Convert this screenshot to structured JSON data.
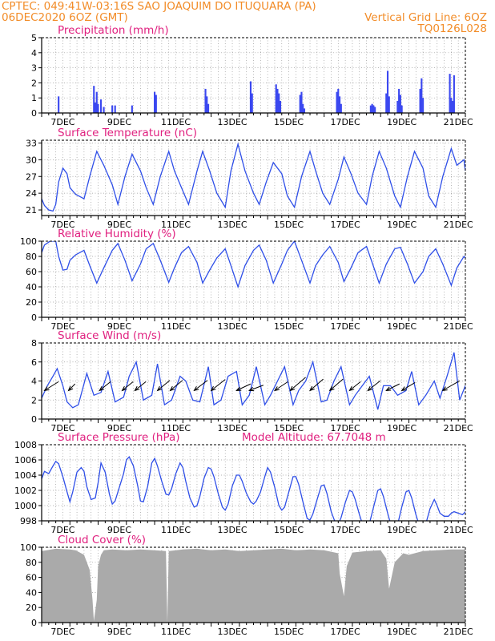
{
  "header": {
    "line1_left": "CPTEC:   049:41W-03:16S   SAO JOAQUIM DO ITUQUARA (PA)",
    "line2_left": "06DEC2020 6OZ (GMT)",
    "line2_right": "Vertical Grid Line: 6OZ",
    "line3_right": "TQ0126L028"
  },
  "x_tick_labels": [
    "7DEC",
    "9DEC",
    "11DEC",
    "13DEC",
    "15DEC",
    "17DEC",
    "19DEC",
    "21DEC"
  ],
  "colors": {
    "header": "#f28c28",
    "panel_title": "#e0207f",
    "line": "#2f4fe8",
    "bar": "#3b48f0",
    "cloud": "#aaaaaa",
    "grid": "#9a9a9a"
  },
  "chart_data": [
    {
      "type": "bar",
      "title": "Precipitation (mm/h)",
      "x_unit": "days since 06DEC2020 06Z",
      "xlim": [
        0,
        15
      ],
      "ylim": [
        0,
        5
      ],
      "yticks": [
        0,
        1,
        2,
        3,
        4,
        5
      ],
      "x": [
        0.6,
        1.85,
        1.9,
        1.95,
        2.0,
        2.1,
        2.2,
        2.5,
        2.6,
        3.2,
        4.0,
        4.05,
        5.8,
        5.85,
        5.9,
        7.4,
        7.45,
        8.3,
        8.35,
        8.4,
        8.45,
        9.15,
        9.2,
        9.25,
        9.3,
        10.45,
        10.5,
        10.55,
        10.6,
        11.65,
        11.7,
        11.75,
        11.8,
        12.2,
        12.25,
        12.3,
        12.6,
        12.65,
        12.7,
        12.75,
        13.4,
        13.45,
        13.5,
        14.45,
        14.5,
        14.55,
        14.6
      ],
      "values": [
        1.1,
        1.8,
        0.7,
        1.4,
        0.6,
        0.9,
        0.4,
        0.5,
        0.5,
        0.5,
        1.4,
        1.2,
        1.6,
        1.1,
        0.6,
        2.1,
        1.3,
        1.9,
        1.6,
        1.3,
        0.8,
        1.2,
        1.4,
        0.6,
        0.3,
        1.4,
        1.6,
        1.1,
        0.6,
        0.5,
        0.6,
        0.5,
        0.4,
        1.3,
        2.8,
        1.1,
        0.8,
        1.6,
        1.2,
        0.5,
        1.6,
        2.3,
        1.0,
        2.6,
        1.0,
        0.8,
        2.5
      ]
    },
    {
      "type": "line",
      "title": "Surface Temperature (nC)",
      "x_unit": "days since 06DEC2020 06Z",
      "xlim": [
        0,
        15
      ],
      "ylim": [
        20,
        33.5
      ],
      "yticks": [
        21,
        24,
        27,
        30,
        33
      ],
      "x": [
        0.0,
        0.1,
        0.25,
        0.4,
        0.5,
        0.6,
        0.75,
        0.9,
        1.0,
        1.2,
        1.5,
        1.7,
        1.95,
        2.2,
        2.5,
        2.7,
        2.95,
        3.2,
        3.5,
        3.7,
        3.95,
        4.2,
        4.5,
        4.7,
        4.95,
        5.2,
        5.5,
        5.7,
        5.95,
        6.2,
        6.5,
        6.7,
        6.95,
        7.2,
        7.5,
        7.7,
        7.95,
        8.2,
        8.5,
        8.7,
        8.95,
        9.2,
        9.5,
        9.7,
        9.95,
        10.2,
        10.5,
        10.7,
        10.95,
        11.2,
        11.5,
        11.7,
        11.95,
        12.2,
        12.5,
        12.7,
        12.95,
        13.2,
        13.5,
        13.7,
        13.95,
        14.2,
        14.5,
        14.7,
        14.95,
        15.0
      ],
      "values": [
        23.0,
        21.8,
        21.0,
        20.8,
        22.0,
        26.0,
        28.5,
        27.5,
        25.0,
        23.8,
        23.0,
        27.0,
        31.5,
        29.0,
        25.5,
        22.0,
        27.0,
        31.0,
        28.0,
        25.0,
        22.0,
        27.0,
        31.5,
        28.0,
        25.0,
        22.0,
        28.0,
        31.5,
        28.0,
        24.0,
        21.5,
        28.0,
        32.8,
        28.0,
        24.0,
        22.0,
        26.0,
        29.5,
        27.5,
        23.5,
        21.5,
        27.0,
        31.5,
        28.0,
        24.0,
        22.0,
        26.5,
        30.5,
        27.5,
        24.0,
        22.0,
        27.0,
        31.5,
        28.5,
        23.5,
        21.5,
        27.0,
        31.5,
        28.5,
        23.5,
        21.5,
        27.0,
        32.0,
        29.0,
        30.0,
        28.0
      ]
    },
    {
      "type": "line",
      "title": "Relative Humidity (%)",
      "x_unit": "days since 06DEC2020 06Z",
      "xlim": [
        0,
        15
      ],
      "ylim": [
        0,
        100
      ],
      "yticks": [
        0,
        20,
        40,
        60,
        80,
        100
      ],
      "x": [
        0.0,
        0.1,
        0.3,
        0.5,
        0.6,
        0.75,
        0.9,
        1.0,
        1.2,
        1.5,
        1.7,
        1.95,
        2.2,
        2.5,
        2.7,
        2.95,
        3.2,
        3.5,
        3.7,
        3.95,
        4.2,
        4.5,
        4.7,
        4.95,
        5.2,
        5.5,
        5.7,
        5.95,
        6.2,
        6.5,
        6.7,
        6.95,
        7.2,
        7.5,
        7.7,
        7.95,
        8.2,
        8.5,
        8.7,
        8.95,
        9.2,
        9.5,
        9.7,
        9.95,
        10.2,
        10.5,
        10.7,
        10.95,
        11.2,
        11.5,
        11.7,
        11.95,
        12.2,
        12.5,
        12.7,
        12.95,
        13.2,
        13.5,
        13.7,
        13.95,
        14.2,
        14.5,
        14.7,
        14.95,
        15.0
      ],
      "values": [
        85.0,
        95.0,
        100.0,
        100.0,
        80.0,
        62.0,
        63.0,
        75.0,
        82.0,
        88.0,
        68.0,
        45.0,
        65.0,
        88.0,
        97.0,
        75.0,
        48.0,
        70.0,
        90.0,
        97.0,
        75.0,
        46.0,
        65.0,
        85.0,
        93.0,
        72.0,
        45.0,
        62.0,
        78.0,
        90.0,
        68.0,
        40.0,
        68.0,
        88.0,
        95.0,
        75.0,
        45.0,
        70.0,
        88.0,
        100.0,
        75.0,
        45.0,
        68.0,
        82.0,
        93.0,
        72.0,
        47.0,
        65.0,
        85.0,
        93.0,
        72.0,
        45.0,
        70.0,
        90.0,
        92.0,
        70.0,
        45.0,
        60.0,
        80.0,
        90.0,
        70.0,
        42.0,
        65.0,
        80.0,
        78.0
      ]
    },
    {
      "type": "line",
      "title": "Surface Wind (m/s)",
      "x_unit": "days since 06DEC2020 06Z",
      "xlim": [
        0,
        15
      ],
      "ylim": [
        0,
        8
      ],
      "yticks": [
        0,
        2,
        4,
        6,
        8
      ],
      "x": [
        0.0,
        0.2,
        0.4,
        0.55,
        0.75,
        0.9,
        1.1,
        1.3,
        1.6,
        1.85,
        2.1,
        2.35,
        2.6,
        2.9,
        3.1,
        3.35,
        3.6,
        3.9,
        4.1,
        4.35,
        4.6,
        4.9,
        5.1,
        5.35,
        5.6,
        5.9,
        6.1,
        6.35,
        6.6,
        6.9,
        7.1,
        7.35,
        7.6,
        7.9,
        8.1,
        8.35,
        8.6,
        8.9,
        9.1,
        9.35,
        9.6,
        9.9,
        10.1,
        10.35,
        10.6,
        10.9,
        11.1,
        11.35,
        11.6,
        11.9,
        12.1,
        12.35,
        12.6,
        12.9,
        13.1,
        13.35,
        13.6,
        13.9,
        14.1,
        14.35,
        14.6,
        14.8,
        15.0
      ],
      "values": [
        2.2,
        3.5,
        4.5,
        5.3,
        3.5,
        1.8,
        1.2,
        1.5,
        4.8,
        2.5,
        2.8,
        5.0,
        1.8,
        2.3,
        4.5,
        6.0,
        2.0,
        2.5,
        5.8,
        1.5,
        2.0,
        4.5,
        4.0,
        2.0,
        1.8,
        5.5,
        1.5,
        2.0,
        4.5,
        5.0,
        1.5,
        2.5,
        5.5,
        1.5,
        2.5,
        4.0,
        5.5,
        1.5,
        3.0,
        4.0,
        6.0,
        1.8,
        2.0,
        4.0,
        5.5,
        1.5,
        2.5,
        3.5,
        4.5,
        1.0,
        3.5,
        3.5,
        2.5,
        3.0,
        5.0,
        1.5,
        2.5,
        4.0,
        2.2,
        4.5,
        7.0,
        2.0,
        3.5
      ],
      "wind_vectors": [
        {
          "x": 0.1,
          "u": 3.2,
          "v": 2.0
        },
        {
          "x": 0.95,
          "u": 1.5,
          "v": 1.5
        },
        {
          "x": 2.05,
          "u": 2.5,
          "v": 2.0
        },
        {
          "x": 2.85,
          "u": 2.5,
          "v": 2.0
        },
        {
          "x": 3.3,
          "u": 2.5,
          "v": 2.0
        },
        {
          "x": 4.1,
          "u": 2.8,
          "v": 2.3
        },
        {
          "x": 4.55,
          "u": 2.8,
          "v": 2.3
        },
        {
          "x": 5.4,
          "u": 3.0,
          "v": 2.3
        },
        {
          "x": 6.0,
          "u": 3.2,
          "v": 2.5
        },
        {
          "x": 6.9,
          "u": 3.2,
          "v": 1.5
        },
        {
          "x": 7.35,
          "u": 3.2,
          "v": 1.2
        },
        {
          "x": 8.25,
          "u": 3.0,
          "v": 2.0
        },
        {
          "x": 8.8,
          "u": 3.5,
          "v": 3.0
        },
        {
          "x": 9.5,
          "u": 3.0,
          "v": 2.6
        },
        {
          "x": 10.2,
          "u": 3.0,
          "v": 2.6
        },
        {
          "x": 10.9,
          "u": 2.5,
          "v": 2.0
        },
        {
          "x": 11.55,
          "u": 2.8,
          "v": 2.2
        },
        {
          "x": 12.2,
          "u": 3.0,
          "v": 1.5
        },
        {
          "x": 12.75,
          "u": 3.0,
          "v": 1.8
        },
        {
          "x": 14.2,
          "u": 3.8,
          "v": 2.2
        }
      ]
    },
    {
      "type": "line",
      "title": "Surface Pressure (hPa)",
      "subtitle": "Model Altitude: 67.7048 m",
      "x_unit": "days since 06DEC2020 06Z",
      "xlim": [
        0,
        15
      ],
      "ylim": [
        998,
        1008
      ],
      "yticks": [
        998,
        1000,
        1002,
        1004,
        1006,
        1008
      ],
      "x": [
        0.0,
        0.1,
        0.25,
        0.4,
        0.5,
        0.6,
        0.75,
        0.9,
        1.0,
        1.1,
        1.25,
        1.4,
        1.5,
        1.6,
        1.75,
        1.9,
        2.0,
        2.1,
        2.25,
        2.4,
        2.5,
        2.6,
        2.75,
        2.9,
        3.0,
        3.1,
        3.25,
        3.4,
        3.5,
        3.6,
        3.75,
        3.9,
        4.0,
        4.1,
        4.25,
        4.4,
        4.5,
        4.6,
        4.75,
        4.9,
        5.0,
        5.1,
        5.25,
        5.4,
        5.5,
        5.6,
        5.75,
        5.9,
        6.0,
        6.1,
        6.25,
        6.4,
        6.5,
        6.6,
        6.75,
        6.9,
        7.0,
        7.1,
        7.25,
        7.4,
        7.5,
        7.6,
        7.75,
        7.9,
        8.0,
        8.1,
        8.25,
        8.4,
        8.5,
        8.6,
        8.75,
        8.9,
        9.0,
        9.1,
        9.25,
        9.4,
        9.5,
        9.6,
        9.75,
        9.9,
        10.0,
        10.1,
        10.25,
        10.4,
        10.5,
        10.6,
        10.75,
        10.9,
        11.0,
        11.1,
        11.25,
        11.4,
        11.5,
        11.6,
        11.75,
        11.9,
        12.0,
        12.1,
        12.25,
        12.4,
        12.5,
        12.6,
        12.75,
        12.9,
        13.0,
        13.1,
        13.25,
        13.4,
        13.5,
        13.6,
        13.75,
        13.9,
        14.0,
        14.1,
        14.25,
        14.4,
        14.5,
        14.6,
        14.75,
        14.9,
        15.0
      ],
      "values": [
        1003.5,
        1004.5,
        1004.2,
        1005.2,
        1005.8,
        1005.5,
        1003.8,
        1001.8,
        1000.5,
        1001.8,
        1004.4,
        1005.0,
        1004.5,
        1002.5,
        1000.8,
        1001.0,
        1003.0,
        1005.6,
        1004.4,
        1001.5,
        1000.2,
        1000.6,
        1002.4,
        1004.2,
        1006.0,
        1006.4,
        1005.2,
        1002.6,
        1000.6,
        1000.5,
        1002.5,
        1005.6,
        1006.2,
        1005.2,
        1003.2,
        1001.5,
        1001.4,
        1002.2,
        1004.2,
        1005.6,
        1005.0,
        1003.2,
        1001.0,
        999.8,
        1000.0,
        1001.2,
        1003.6,
        1005.0,
        1004.8,
        1003.8,
        1001.6,
        999.8,
        999.4,
        1000.2,
        1002.6,
        1004.0,
        1004.0,
        1003.2,
        1001.6,
        1000.5,
        1000.2,
        1000.6,
        1001.8,
        1003.8,
        1005.0,
        1004.4,
        1002.4,
        1000.0,
        999.4,
        999.8,
        1001.8,
        1003.8,
        1003.8,
        1002.8,
        1000.5,
        998.3,
        998.1,
        998.9,
        1000.8,
        1002.6,
        1002.7,
        1001.6,
        999.2,
        997.7,
        997.6,
        998.4,
        1000.4,
        1002.0,
        1001.8,
        1000.8,
        998.8,
        997.1,
        996.8,
        997.6,
        999.8,
        1002.0,
        1002.2,
        1001.2,
        999.0,
        997.0,
        996.7,
        997.5,
        999.8,
        1001.8,
        1002.0,
        1001.0,
        998.8,
        997.0,
        996.8,
        997.6,
        999.6,
        1000.8,
        1000.0,
        999.0,
        998.6,
        998.6,
        999.0,
        999.2,
        999.0,
        998.8,
        999.2
      ]
    },
    {
      "type": "area",
      "title": "Cloud Cover (%)",
      "x_unit": "days since 06DEC2020 06Z",
      "xlim": [
        0,
        15
      ],
      "ylim": [
        0,
        100
      ],
      "yticks": [
        0,
        20,
        40,
        60,
        80,
        100
      ],
      "x": [
        0.0,
        0.5,
        1.0,
        1.2,
        1.5,
        1.7,
        1.8,
        1.85,
        1.95,
        2.0,
        2.1,
        2.2,
        2.5,
        3.0,
        3.5,
        4.0,
        4.4,
        4.45,
        4.5,
        5.0,
        5.5,
        6.0,
        6.5,
        7.0,
        7.5,
        8.0,
        8.5,
        9.0,
        9.5,
        10.0,
        10.5,
        10.55,
        10.7,
        10.8,
        11.0,
        11.5,
        12.0,
        12.2,
        12.3,
        12.5,
        12.8,
        13.0,
        13.5,
        14.0,
        14.5,
        15.0
      ],
      "values": [
        95.0,
        98.0,
        97.0,
        96.0,
        90.0,
        70.0,
        30.0,
        2.0,
        30.0,
        75.0,
        90.0,
        96.0,
        97.0,
        96.0,
        97.0,
        96.0,
        95.0,
        0.0,
        95.0,
        97.0,
        98.0,
        96.0,
        97.0,
        95.0,
        96.0,
        97.0,
        98.0,
        96.0,
        97.0,
        96.0,
        92.0,
        65.0,
        35.0,
        75.0,
        93.0,
        95.0,
        96.0,
        85.0,
        45.0,
        80.0,
        92.0,
        90.0,
        95.0,
        96.0,
        97.0,
        97.0
      ]
    }
  ]
}
